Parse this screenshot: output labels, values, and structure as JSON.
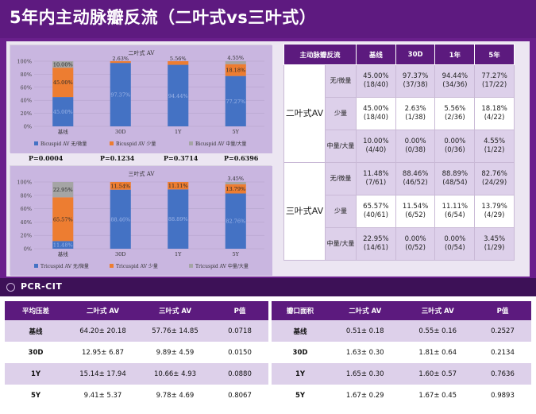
{
  "slide": {
    "title": "5年内主动脉瓣反流（二叶式vs三叶式）",
    "logo": "PCR-CIT",
    "colors": {
      "slide_bg": "#6a1f8c",
      "blue": "#4472c4",
      "orange": "#ed7d31",
      "gray": "#a5a5a5",
      "header": "#5c1a7e",
      "row_alt": "#ddd0ea"
    }
  },
  "chart_data": [
    {
      "type": "bar",
      "stacked": true,
      "title": "二叶式 AV",
      "categories": [
        "基线",
        "30D",
        "1Y",
        "5Y"
      ],
      "series": [
        {
          "name": "Bicuspid AV 无/微量",
          "values": [
            45.0,
            97.37,
            94.44,
            77.27
          ],
          "labels": [
            "45.00%",
            "97.37%",
            "94.44%",
            "77.27%"
          ]
        },
        {
          "name": "Bicuspid AV 少量",
          "values": [
            45.0,
            2.63,
            5.56,
            18.18
          ],
          "labels": [
            "45.00%",
            "2.63%",
            "5.56%",
            "18.18%"
          ]
        },
        {
          "name": "Bicuspid AV 中量/大量",
          "values": [
            10.0,
            0.0,
            0.0,
            4.55
          ],
          "labels": [
            "10.00%",
            "",
            "",
            "4.55%"
          ]
        }
      ],
      "y_ticks": [
        "0%",
        "20%",
        "40%",
        "60%",
        "80%",
        "100%"
      ],
      "ylim": [
        0,
        100
      ],
      "pvalues": [
        "P=0.0004",
        "P=0.1234",
        "P=0.3714",
        "P=0.6396"
      ]
    },
    {
      "type": "bar",
      "stacked": true,
      "title": "三叶式 AV",
      "categories": [
        "基线",
        "30D",
        "1Y",
        "5Y"
      ],
      "series": [
        {
          "name": "Tricuspid AV 无/微量",
          "values": [
            11.48,
            88.46,
            88.89,
            82.76
          ],
          "labels": [
            "11.48%",
            "88.46%",
            "88.89%",
            "82.76%"
          ]
        },
        {
          "name": "Tricuspid AV 少量",
          "values": [
            65.57,
            11.54,
            11.11,
            13.79
          ],
          "labels": [
            "65.57%",
            "11.54%",
            "11.11%",
            "13.79%"
          ]
        },
        {
          "name": "Tricuspid AV 中量/大量",
          "values": [
            22.95,
            0.0,
            0.0,
            3.45
          ],
          "labels": [
            "22.95%",
            "",
            "",
            "3.45%"
          ]
        }
      ],
      "y_ticks": [
        "0%",
        "20%",
        "40%",
        "60%",
        "80%",
        "100%"
      ],
      "ylim": [
        0,
        100
      ]
    }
  ],
  "regurg_table": {
    "headers": [
      "主动脉瓣反流",
      "",
      "基线",
      "30D",
      "1年",
      "5年"
    ],
    "groups": [
      {
        "name": "二叶式AV",
        "rows": [
          {
            "grade": "无/微量",
            "cells": [
              "45.00% (18/40)",
              "97.37% (37/38)",
              "94.44% (34/36)",
              "77.27% (17/22)"
            ]
          },
          {
            "grade": "少量",
            "cells": [
              "45.00% (18/40)",
              "2.63% (1/38)",
              "5.56% (2/36)",
              "18.18% (4/22)"
            ]
          },
          {
            "grade": "中量/大量",
            "cells": [
              "10.00% (4/40)",
              "0.00% (0/38)",
              "0.00% (0/36)",
              "4.55% (1/22)"
            ]
          }
        ]
      },
      {
        "name": "三叶式AV",
        "rows": [
          {
            "grade": "无/微量",
            "cells": [
              "11.48% (7/61)",
              "88.46% (46/52)",
              "88.89% (48/54)",
              "82.76% (24/29)"
            ]
          },
          {
            "grade": "少量",
            "cells": [
              "65.57% (40/61)",
              "11.54% (6/52)",
              "11.11% (6/54)",
              "13.79% (4/29)"
            ]
          },
          {
            "grade": "中量/大量",
            "cells": [
              "22.95% (14/61)",
              "0.00% (0/52)",
              "0.00% (0/54)",
              "3.45% (1/29)"
            ]
          }
        ]
      }
    ]
  },
  "gradient_table": {
    "headers": [
      "平均压差",
      "二叶式 AV",
      "三叶式 AV",
      "P值"
    ],
    "rows": [
      [
        "基线",
        "64.20± 20.18",
        "57.76± 14.85",
        "0.0718"
      ],
      [
        "30D",
        "12.95± 6.87",
        "9.89± 4.59",
        "0.0150"
      ],
      [
        "1Y",
        "15.14± 17.94",
        "10.66± 4.93",
        "0.0880"
      ],
      [
        "5Y",
        "9.41± 5.37",
        "9.78± 4.69",
        "0.8067"
      ]
    ]
  },
  "area_table": {
    "headers": [
      "瓣口面积",
      "二叶式 AV",
      "三叶式 AV",
      "P值"
    ],
    "rows": [
      [
        "基线",
        "0.51± 0.18",
        "0.55± 0.16",
        "0.2527"
      ],
      [
        "30D",
        "1.63± 0.30",
        "1.81± 0.64",
        "0.2134"
      ],
      [
        "1Y",
        "1.65± 0.30",
        "1.60± 0.57",
        "0.7636"
      ],
      [
        "5Y",
        "1.67± 0.29",
        "1.67± 0.45",
        "0.9893"
      ]
    ]
  }
}
